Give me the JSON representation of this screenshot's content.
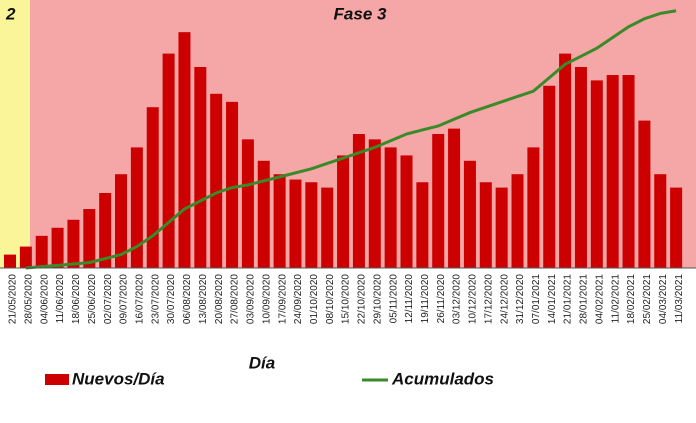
{
  "chart_data": {
    "type": "bar",
    "annotations": [
      "2",
      "Fase 3"
    ],
    "xlabel": "Día",
    "categories": [
      "21/05/2020",
      "28/05/2020",
      "04/06/2020",
      "11/06/2020",
      "18/06/2020",
      "25/06/2020",
      "02/07/2020",
      "09/07/2020",
      "16/07/2020",
      "23/07/2020",
      "30/07/2020",
      "06/08/2020",
      "13/08/2020",
      "20/08/2020",
      "27/08/2020",
      "03/09/2020",
      "10/09/2020",
      "17/09/2020",
      "24/09/2020",
      "01/10/2020",
      "08/10/2020",
      "15/10/2020",
      "22/10/2020",
      "29/10/2020",
      "05/11/2020",
      "12/11/2020",
      "19/11/2020",
      "26/11/2020",
      "03/12/2020",
      "10/12/2020",
      "17/12/2020",
      "24/12/2020",
      "31/12/2020",
      "07/01/2021",
      "14/01/2021",
      "21/01/2021",
      "28/01/2021",
      "04/02/2021",
      "11/02/2021",
      "18/02/2021",
      "25/02/2021",
      "04/03/2021",
      "11/03/2021"
    ],
    "series": [
      {
        "name": "Nuevos/Día",
        "color": "#cc0000",
        "values": [
          5,
          8,
          12,
          15,
          18,
          22,
          28,
          35,
          45,
          60,
          80,
          88,
          75,
          65,
          62,
          48,
          40,
          35,
          33,
          32,
          30,
          42,
          50,
          48,
          45,
          42,
          32,
          50,
          52,
          40,
          32,
          30,
          35,
          45,
          68,
          80,
          75,
          70,
          72,
          72,
          55,
          35,
          30
        ]
      },
      {
        "name": "Acumulados",
        "color": "#3a8a2a",
        "axis": "y2",
        "values": [
          null,
          0,
          0.5,
          1,
          1.5,
          2,
          3.5,
          5,
          8,
          12,
          17,
          22,
          25,
          28,
          30,
          31,
          32.5,
          34,
          35.5,
          37,
          39,
          41,
          43,
          45,
          47.5,
          50,
          51.5,
          53,
          55.5,
          58,
          60,
          62,
          64,
          66,
          71,
          76,
          79,
          82,
          86,
          90,
          93,
          95,
          96
        ]
      }
    ],
    "ylim": [
      0,
      100
    ],
    "y2lim": [
      0,
      100
    ]
  }
}
